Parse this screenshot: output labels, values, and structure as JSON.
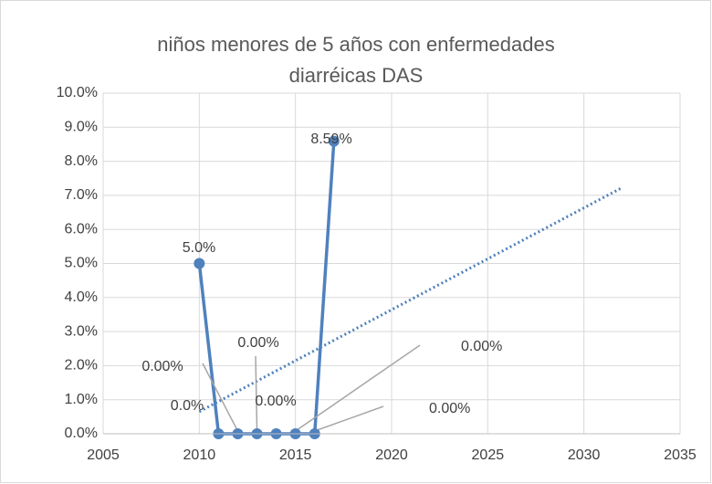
{
  "chart_data": {
    "type": "line",
    "title": [
      "niños menores de 5 años con enfermedades",
      "diarréicas DAS"
    ],
    "x": [
      2010,
      2011,
      2012,
      2013,
      2014,
      2015,
      2016,
      2017
    ],
    "series": [
      {
        "color": "#4f81bd",
        "values": [
          5.0,
          0,
          0,
          0,
          0,
          0,
          0,
          8.59
        ],
        "value_labels": [
          "5.0%",
          "0.0%",
          "0.00%",
          "0.00%",
          "0.00%",
          "0.00%",
          "0.00%",
          "8.59%"
        ]
      }
    ],
    "trendline": {
      "x": [
        2010,
        2032
      ],
      "values": [
        0.65,
        7.23
      ],
      "color": "#4f81bd"
    },
    "xlim": [
      2005,
      2035
    ],
    "xticks": [
      2005,
      2010,
      2015,
      2020,
      2025,
      2030,
      2035
    ],
    "ylim": [
      0,
      10
    ],
    "yticks": [
      {
        "value": 0,
        "label": "0.0%"
      },
      {
        "value": 1,
        "label": "1.0%"
      },
      {
        "value": 2,
        "label": "2.0%"
      },
      {
        "value": 3,
        "label": "3.0%"
      },
      {
        "value": 4,
        "label": "4.0%"
      },
      {
        "value": 5,
        "label": "5.0%"
      },
      {
        "value": 6,
        "label": "6.0%"
      },
      {
        "value": 7,
        "label": "7.0%"
      },
      {
        "value": 8,
        "label": "8.0%"
      },
      {
        "value": 9,
        "label": "9.0%"
      },
      {
        "value": 10,
        "label": "10.0%"
      }
    ],
    "grid": true
  }
}
